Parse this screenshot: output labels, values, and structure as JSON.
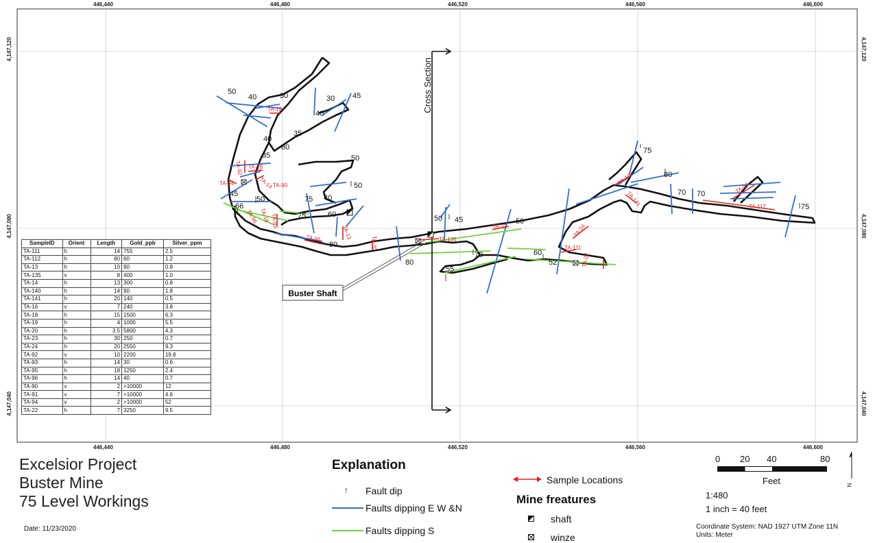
{
  "map": {
    "x_ticks": [
      "446,440",
      "446,480",
      "446,520",
      "446,560",
      "446,600"
    ],
    "y_ticks": [
      "4,147,120",
      "4,147,080",
      "4,147,040"
    ],
    "cross_section_label": "Cross Section",
    "shaft_callout": "Buster Shaft",
    "sample_labels": [
      "TA-111",
      "TA-112",
      "TA-13",
      "TA-135",
      "TA-14",
      "TA-140",
      "TA-141",
      "TA-16",
      "TA-18",
      "TA-19",
      "TA-20",
      "TA-23",
      "TA-24",
      "TA-92",
      "TA-93",
      "TA-95",
      "TA-96",
      "TA-90",
      "TA-91",
      "TA-94",
      "TA-22"
    ],
    "dip_labels": [
      "50",
      "40",
      "30",
      "30",
      "45",
      "40",
      "35",
      "40",
      "80",
      "35",
      "50",
      "50",
      "45",
      "50",
      "75",
      "40",
      "60",
      "75",
      "66",
      "80",
      "50",
      "45",
      "80",
      "50",
      "70",
      "55",
      "60",
      "52",
      "75",
      "80",
      "70",
      "70",
      "75"
    ]
  },
  "table": {
    "columns": [
      "SampleID",
      "Orient",
      "Length",
      "Gold_ppb",
      "Silver_ppm"
    ],
    "rows": [
      [
        "TA-111",
        "h",
        "14",
        "755",
        "2.5"
      ],
      [
        "TA-112",
        "h",
        "80",
        "60",
        "1.2"
      ],
      [
        "TA-13",
        "h",
        "10",
        "90",
        "0.8"
      ],
      [
        "TA-135",
        "v",
        "8",
        "400",
        "1.0"
      ],
      [
        "TA-14",
        "h",
        "13",
        "300",
        "0.8"
      ],
      [
        "TA-140",
        "h",
        "14",
        "90",
        "1.8"
      ],
      [
        "TA-141",
        "h",
        "20",
        "140",
        "0.5"
      ],
      [
        "TA-16",
        "v",
        "7",
        "240",
        "3.8"
      ],
      [
        "TA-18",
        "h",
        "15",
        "1500",
        "6.3"
      ],
      [
        "TA-19",
        "h",
        "4",
        "1000",
        "5.5"
      ],
      [
        "TA-20",
        "h",
        "3.5",
        "5800",
        "4.3"
      ],
      [
        "TA-23",
        "h",
        "30",
        "250",
        "0.7"
      ],
      [
        "TA-24",
        "h",
        "20",
        "2550",
        "9.3"
      ],
      [
        "TA-92",
        "v",
        "10",
        "2200",
        "19.8"
      ],
      [
        "TA-93",
        "h",
        "14",
        "30",
        "0.6"
      ],
      [
        "TA-95",
        "h",
        "18",
        "1250",
        "2.4"
      ],
      [
        "TA-96",
        "h",
        "14",
        "40",
        "0.7"
      ],
      [
        "TA-90",
        "v",
        "2",
        ">10000",
        "12"
      ],
      [
        "TA-91",
        "v",
        "7",
        ">10000",
        "4.6"
      ],
      [
        "TA-94",
        "v",
        "2",
        ">10000",
        "52"
      ],
      [
        "TA-22",
        "h",
        "7",
        "3250",
        "9.5"
      ]
    ]
  },
  "title": {
    "line1": "Excelsior Project",
    "line2": "Buster Mine",
    "line3": "75 Level Workings",
    "date": "Date: 11/23/2020"
  },
  "legend": {
    "heading": "Explanation",
    "fault_dip": "Fault dip",
    "faults_ewn": "Faults dipping E W &N",
    "faults_s": "Faults dipping S",
    "sample_locations": "Sample Locations",
    "mine_heading": "Mine freatures",
    "shaft": "shaft",
    "winze": "winze",
    "colors": {
      "fault_ewn": "#2f6fd0",
      "fault_s": "#6fd23a",
      "sample": "#e02020"
    }
  },
  "scale": {
    "ticks": [
      "0",
      "20",
      "40",
      "80"
    ],
    "unit": "Feet",
    "ratio": "1:480",
    "inch": "1 inch = 40 feet",
    "coord_system": "Coordinate System: NAD 1927 UTM Zone 11N",
    "units": "Units: Meter",
    "north": "N"
  }
}
